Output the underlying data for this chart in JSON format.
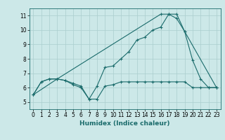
{
  "title": "",
  "xlabel": "Humidex (Indice chaleur)",
  "xlim": [
    -0.5,
    23.5
  ],
  "ylim": [
    4.5,
    11.5
  ],
  "xticks": [
    0,
    1,
    2,
    3,
    4,
    5,
    6,
    7,
    8,
    9,
    10,
    11,
    12,
    13,
    14,
    15,
    16,
    17,
    18,
    19,
    20,
    21,
    22,
    23
  ],
  "yticks": [
    5,
    6,
    7,
    8,
    9,
    10,
    11
  ],
  "bg_color": "#cce8e8",
  "line_color": "#1a6b6b",
  "grid_color": "#aacece",
  "line1_x": [
    0,
    1,
    2,
    3,
    4,
    5,
    6,
    7,
    8,
    9,
    10,
    11,
    12,
    13,
    14,
    15,
    16,
    17,
    18,
    19,
    20,
    21,
    22,
    23
  ],
  "line1_y": [
    5.5,
    6.4,
    6.6,
    6.6,
    6.5,
    6.2,
    6.0,
    5.2,
    6.1,
    7.4,
    7.5,
    8.0,
    8.5,
    9.3,
    9.5,
    10.0,
    10.2,
    11.1,
    11.1,
    9.9,
    7.9,
    6.6,
    6.0,
    6.0
  ],
  "line2_x": [
    0,
    1,
    2,
    3,
    4,
    5,
    6,
    7,
    8,
    9,
    10,
    11,
    12,
    13,
    14,
    15,
    16,
    17,
    18,
    19,
    20,
    21,
    22,
    23
  ],
  "line2_y": [
    5.5,
    6.4,
    6.6,
    6.6,
    6.5,
    6.3,
    6.1,
    5.2,
    5.2,
    6.1,
    6.2,
    6.4,
    6.4,
    6.4,
    6.4,
    6.4,
    6.4,
    6.4,
    6.4,
    6.4,
    6.0,
    6.0,
    6.0,
    6.0
  ],
  "line3_x": [
    0,
    3,
    16,
    17,
    18,
    19,
    23
  ],
  "line3_y": [
    5.5,
    6.6,
    11.1,
    11.1,
    10.8,
    9.9,
    6.0
  ],
  "tick_fontsize": 5.5,
  "xlabel_fontsize": 6.5
}
